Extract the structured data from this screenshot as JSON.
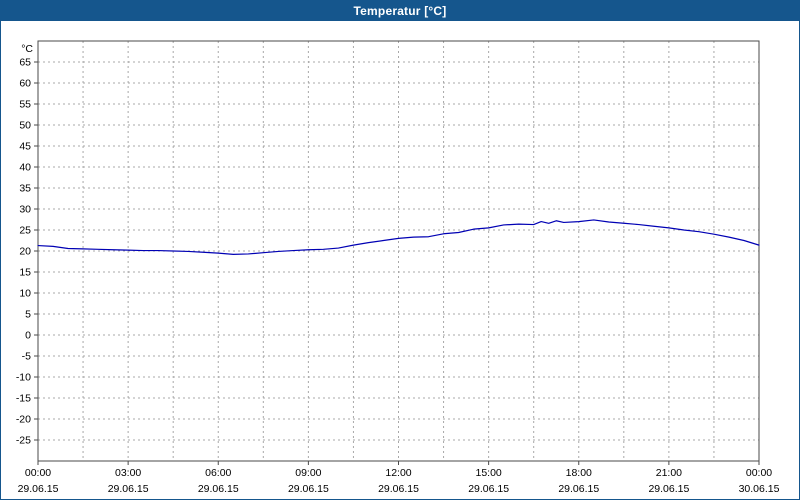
{
  "window": {
    "title": "Temperatur [°C]"
  },
  "colors": {
    "titlebar_bg": "#15568d",
    "titlebar_text": "#ffffff",
    "window_border": "#15568d",
    "plot_border": "#4a4a4a",
    "axis_tick": "#4a4a4a",
    "grid": "#a8a8a8",
    "line": "#0000b4",
    "text": "#000000",
    "background": "#ffffff"
  },
  "chart_data": {
    "type": "line",
    "title": "Temperatur [°C]",
    "unit_label": "°C",
    "ylim": [
      -30,
      70
    ],
    "xlim_hours": [
      0,
      24
    ],
    "x_minor_step_hours": 1.5,
    "grid": true,
    "legend_position": "none",
    "ytick_values": [
      65,
      60,
      55,
      50,
      45,
      40,
      35,
      30,
      25,
      20,
      15,
      10,
      5,
      0,
      -5,
      -10,
      -15,
      -20,
      -25
    ],
    "ytick_labels": [
      "65",
      "60",
      "55",
      "50",
      "45",
      "40",
      "35",
      "30",
      "25",
      "20",
      "15",
      "10",
      "5",
      "0",
      "-5",
      "-10",
      "-15",
      "-20",
      "-25"
    ],
    "xticks": [
      {
        "hour": 0,
        "time": "00:00",
        "date": "29.06.15"
      },
      {
        "hour": 3,
        "time": "03:00",
        "date": "29.06.15"
      },
      {
        "hour": 6,
        "time": "06:00",
        "date": "29.06.15"
      },
      {
        "hour": 9,
        "time": "09:00",
        "date": "29.06.15"
      },
      {
        "hour": 12,
        "time": "12:00",
        "date": "29.06.15"
      },
      {
        "hour": 15,
        "time": "15:00",
        "date": "29.06.15"
      },
      {
        "hour": 18,
        "time": "18:00",
        "date": "29.06.15"
      },
      {
        "hour": 21,
        "time": "21:00",
        "date": "29.06.15"
      },
      {
        "hour": 24,
        "time": "00:00",
        "date": "30.06.15"
      }
    ],
    "series": [
      {
        "name": "Temperatur",
        "color": "#0000b4",
        "x": [
          0,
          0.5,
          1,
          1.5,
          2,
          2.5,
          3,
          3.5,
          4,
          4.5,
          5,
          5.5,
          6,
          6.5,
          7,
          7.5,
          8,
          8.5,
          9,
          9.5,
          10,
          10.5,
          11,
          11.5,
          12,
          12.5,
          13,
          13.5,
          14,
          14.5,
          15,
          15.5,
          16,
          16.5,
          16.75,
          17,
          17.25,
          17.5,
          18,
          18.5,
          19,
          19.5,
          20,
          20.5,
          21,
          21.5,
          22,
          22.5,
          23,
          23.5,
          24
        ],
        "y": [
          21.3,
          21.1,
          20.6,
          20.5,
          20.4,
          20.3,
          20.2,
          20.1,
          20.1,
          20.0,
          19.9,
          19.7,
          19.5,
          19.2,
          19.3,
          19.6,
          19.9,
          20.1,
          20.3,
          20.4,
          20.7,
          21.4,
          22.0,
          22.5,
          23.0,
          23.3,
          23.4,
          24.1,
          24.4,
          25.2,
          25.5,
          26.2,
          26.4,
          26.3,
          27.0,
          26.6,
          27.2,
          26.8,
          27.0,
          27.4,
          26.9,
          26.6,
          26.3,
          25.9,
          25.5,
          25.0,
          24.6,
          24.0,
          23.3,
          22.5,
          21.4
        ]
      }
    ]
  }
}
